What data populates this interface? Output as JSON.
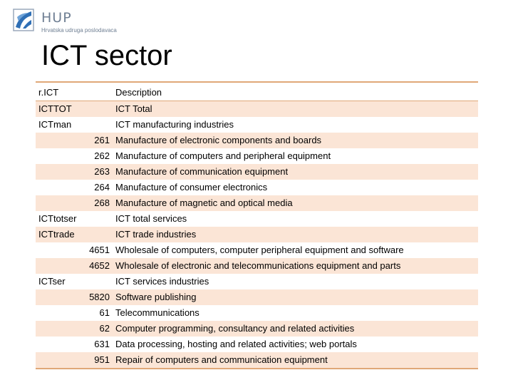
{
  "logo": {
    "title": "HUP",
    "subtitle": "Hrvatska udruga poslodavaca"
  },
  "title": "ICT sector",
  "table": {
    "headers": {
      "code": "r.ICT",
      "description": "Description"
    },
    "rows": [
      {
        "code": "ICTTOT",
        "numeric": false,
        "description": "ICT Total"
      },
      {
        "code": "ICTman",
        "numeric": false,
        "description": "ICT manufacturing industries"
      },
      {
        "code": "261",
        "numeric": true,
        "description": "Manufacture of electronic components and boards"
      },
      {
        "code": "262",
        "numeric": true,
        "description": "Manufacture of computers and peripheral equipment"
      },
      {
        "code": "263",
        "numeric": true,
        "description": "Manufacture of communication equipment"
      },
      {
        "code": "264",
        "numeric": true,
        "description": "Manufacture of consumer electronics"
      },
      {
        "code": "268",
        "numeric": true,
        "description": "Manufacture of magnetic and optical media"
      },
      {
        "code": "ICTtotser",
        "numeric": false,
        "description": "ICT total services"
      },
      {
        "code": "ICTtrade",
        "numeric": false,
        "description": "ICT trade industries"
      },
      {
        "code": "4651",
        "numeric": true,
        "description": "Wholesale of computers, computer peripheral equipment and software"
      },
      {
        "code": "4652",
        "numeric": true,
        "description": "Wholesale of electronic and telecommunications equipment and parts"
      },
      {
        "code": "ICTser",
        "numeric": false,
        "description": "ICT services industries"
      },
      {
        "code": "5820",
        "numeric": true,
        "description": "Software publishing"
      },
      {
        "code": "61",
        "numeric": true,
        "description": "Telecommunications"
      },
      {
        "code": "62",
        "numeric": true,
        "description": "Computer programming, consultancy and related activities"
      },
      {
        "code": "631",
        "numeric": true,
        "description": "Data processing, hosting and related activities; web portals"
      },
      {
        "code": "951",
        "numeric": true,
        "description": "Repair of computers and communication equipment"
      }
    ]
  },
  "colors": {
    "accent": "#e0a878",
    "stripe": "#fbe5d6",
    "logo_blue": "#2f6fb5",
    "logo_text": "#6f7f93"
  }
}
